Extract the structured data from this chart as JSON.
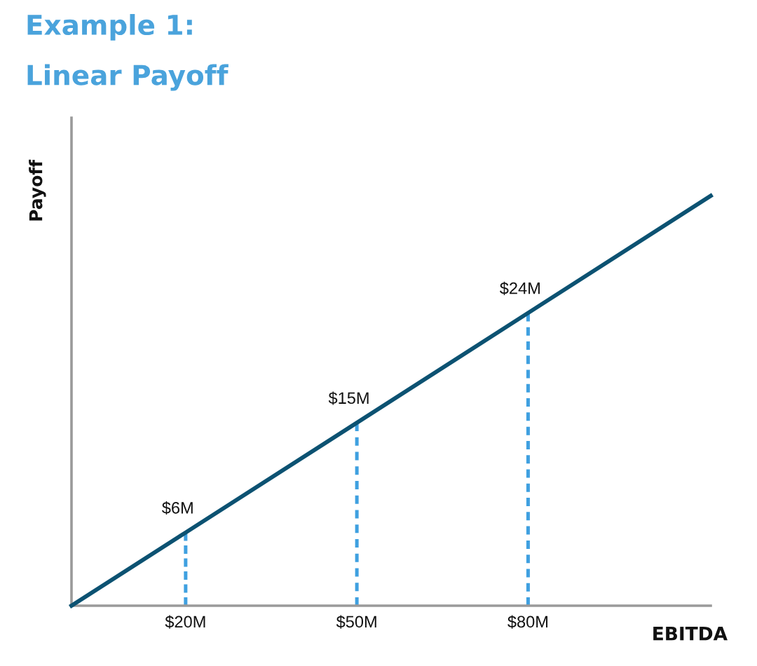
{
  "chart_data": {
    "type": "line",
    "title": "Example 1:\nLinear Payoff",
    "xlabel": "EBITDA",
    "ylabel": "Payoff",
    "xlim": [
      0,
      112
    ],
    "xticks": [
      {
        "value": 20,
        "label": "$20M"
      },
      {
        "value": 50,
        "label": "$50M"
      },
      {
        "value": 80,
        "label": "$80M"
      }
    ],
    "ylim": [
      0,
      40
    ],
    "tick_labels": "x",
    "grid": false,
    "marker": "none",
    "series": [
      {
        "color": "#0c5272",
        "line_style": "solid",
        "x": [
          0,
          20,
          50,
          80,
          112
        ],
        "values": [
          0,
          6,
          15,
          24,
          33.6
        ],
        "value_labels": [
          null,
          "$6M",
          "$15M",
          "$24M",
          null
        ]
      },
      {
        "color": "#3fa0e0",
        "line_style": "dashed",
        "x": [
          20,
          20
        ],
        "values": [
          0,
          6
        ]
      },
      {
        "color": "#3fa0e0",
        "line_style": "dashed",
        "x": [
          50,
          50
        ],
        "values": [
          0,
          15
        ]
      },
      {
        "color": "#3fa0e0",
        "line_style": "dashed",
        "x": [
          80,
          80
        ],
        "values": [
          0,
          24
        ]
      }
    ]
  }
}
